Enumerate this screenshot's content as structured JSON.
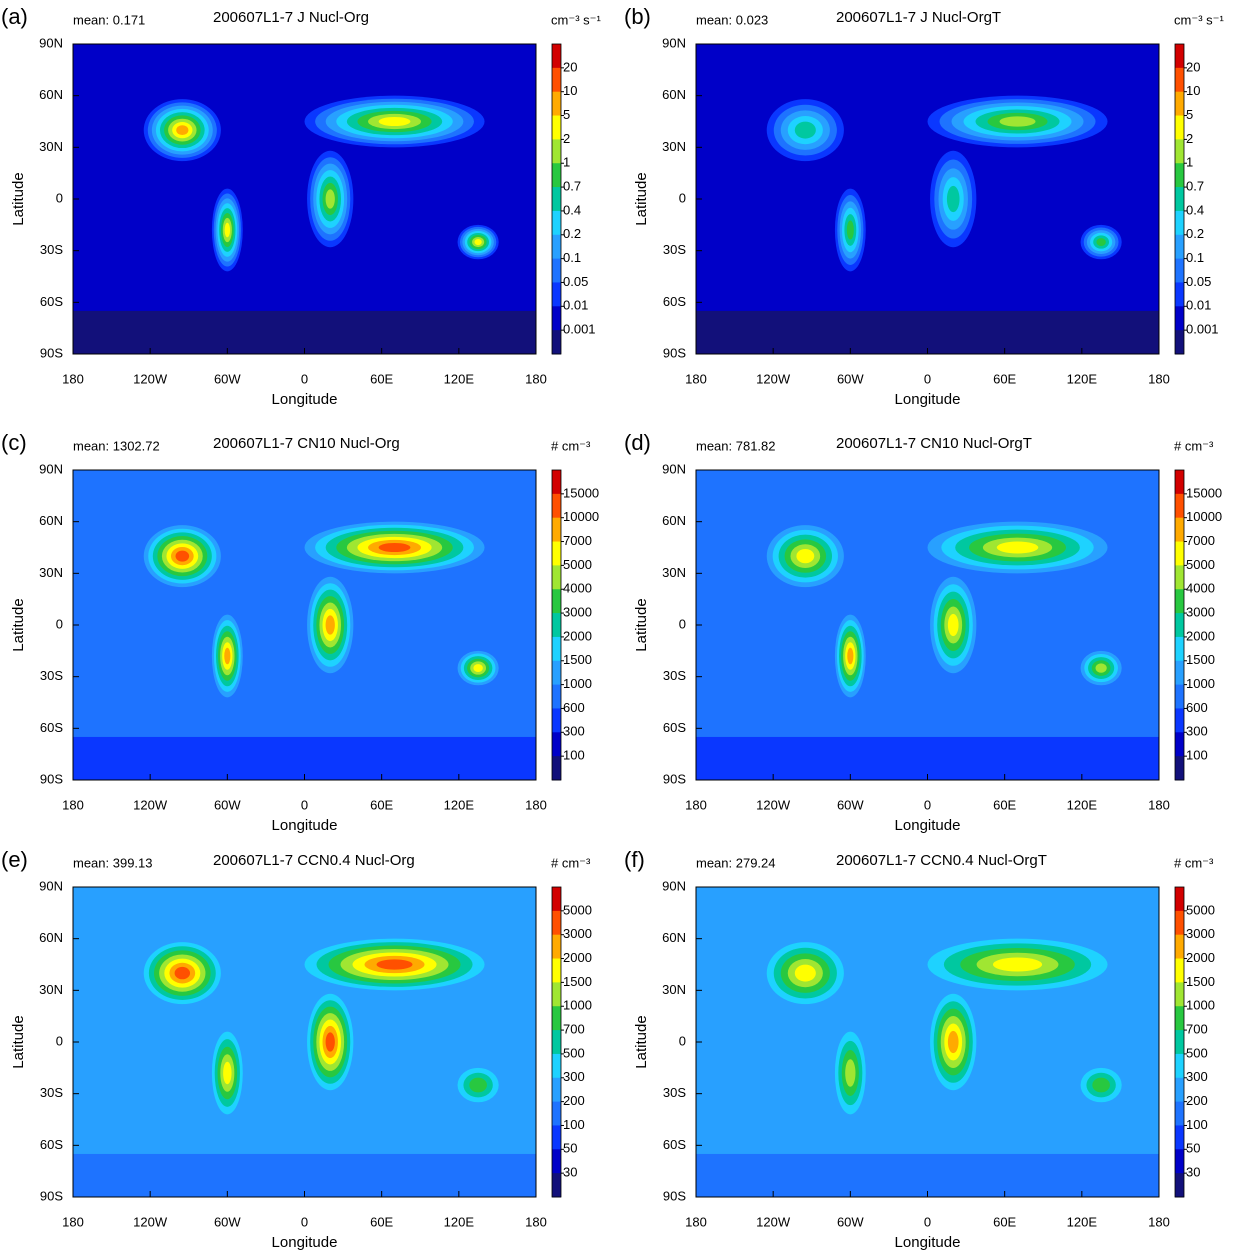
{
  "axes": {
    "xlabel": "Longitude",
    "ylabel": "Latitude",
    "xlim": [
      -180,
      180
    ],
    "ylim": [
      -90,
      90
    ],
    "xticks": [
      {
        "value": -180,
        "label": "180"
      },
      {
        "value": -120,
        "label": "120W"
      },
      {
        "value": -60,
        "label": "60W"
      },
      0,
      {
        "value": 60,
        "label": "60E"
      },
      {
        "value": 120,
        "label": "120E"
      },
      {
        "value": 180,
        "label": "180"
      }
    ],
    "yticks": [
      {
        "value": 90,
        "label": "90N"
      },
      {
        "value": 60,
        "label": "60N"
      },
      {
        "value": 30,
        "label": "30N"
      },
      0,
      {
        "value": -30,
        "label": "30S"
      },
      {
        "value": -60,
        "label": "60S"
      },
      {
        "value": -90,
        "label": "90S"
      }
    ]
  },
  "colors": [
    "#12107a",
    "#0000c8",
    "#0a37ff",
    "#1e73ff",
    "#28a0ff",
    "#1ed2ff",
    "#00c8a0",
    "#28c840",
    "#a0e632",
    "#ffff00",
    "#ffaa00",
    "#ff5000",
    "#d20000"
  ],
  "panels": [
    {
      "label": "(a)",
      "mean": "mean: 0.171",
      "title": "200607L1-7 J Nucl-Org",
      "unit": "cm⁻³ s⁻¹",
      "levels": [
        20,
        10,
        5,
        2,
        1,
        0.7,
        0.4,
        0.2,
        0.1,
        0.05,
        0.01,
        0.001
      ]
    },
    {
      "label": "(b)",
      "mean": "mean: 0.023",
      "title": "200607L1-7 J Nucl-OrgT",
      "unit": "cm⁻³ s⁻¹",
      "levels": [
        20,
        10,
        5,
        2,
        1,
        0.7,
        0.4,
        0.2,
        0.1,
        0.05,
        0.01,
        0.001
      ]
    },
    {
      "label": "(c)",
      "mean": "mean: 1302.72",
      "title": "200607L1-7 CN10 Nucl-Org",
      "unit": "# cm⁻³",
      "levels": [
        15000,
        10000,
        7000,
        5000,
        4000,
        3000,
        2000,
        1500,
        1000,
        600,
        300,
        100
      ]
    },
    {
      "label": "(d)",
      "mean": "mean: 781.82",
      "title": "200607L1-7 CN10 Nucl-OrgT",
      "unit": "# cm⁻³",
      "levels": [
        15000,
        10000,
        7000,
        5000,
        4000,
        3000,
        2000,
        1500,
        1000,
        600,
        300,
        100
      ]
    },
    {
      "label": "(e)",
      "mean": "mean: 399.13",
      "title": "200607L1-7 CCN0.4 Nucl-Org",
      "unit": "# cm⁻³",
      "levels": [
        5000,
        3000,
        2000,
        1500,
        1000,
        700,
        500,
        300,
        200,
        100,
        50,
        30
      ]
    },
    {
      "label": "(f)",
      "mean": "mean: 279.24",
      "title": "200607L1-7 CCN0.4 Nucl-OrgT",
      "unit": "# cm⁻³",
      "levels": [
        5000,
        3000,
        2000,
        1500,
        1000,
        700,
        500,
        300,
        200,
        100,
        50,
        30
      ]
    }
  ]
}
